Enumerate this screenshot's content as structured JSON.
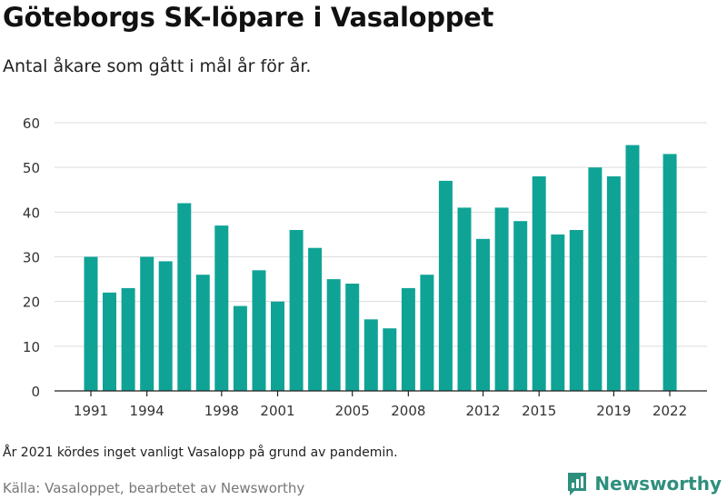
{
  "title": "Göteborgs SK-löpare i Vasaloppet",
  "subtitle": "Antal åkare som gått i mål år för år.",
  "note": "År 2021 kördes inget vanligt Vasalopp på grund av pandemin.",
  "source": "Källa: Vasaloppet, bearbetet av Newsworthy",
  "brand": {
    "name": "Newsworthy",
    "icon": "newsworthy-logo-icon",
    "color": "#2e8f7d"
  },
  "colors": {
    "bar": "#0fa396",
    "grid": "#dddddd",
    "axis": "#222222",
    "tick_text": "#333333"
  },
  "chart_data": {
    "type": "bar",
    "title": "Göteborgs SK-löpare i Vasaloppet",
    "xlabel": "",
    "ylabel": "",
    "ylim": [
      0,
      60
    ],
    "yticks": [
      0,
      10,
      20,
      30,
      40,
      50,
      60
    ],
    "grid": true,
    "categories": [
      1991,
      1992,
      1993,
      1994,
      1995,
      1996,
      1997,
      1998,
      1999,
      2000,
      2001,
      2002,
      2003,
      2004,
      2005,
      2006,
      2007,
      2008,
      2009,
      2010,
      2011,
      2012,
      2013,
      2014,
      2015,
      2016,
      2017,
      2018,
      2019,
      2020,
      2021,
      2022
    ],
    "values": [
      30,
      22,
      23,
      30,
      29,
      42,
      26,
      37,
      19,
      27,
      20,
      36,
      32,
      25,
      24,
      16,
      14,
      23,
      26,
      47,
      41,
      34,
      41,
      38,
      48,
      35,
      36,
      50,
      48,
      55,
      null,
      53
    ],
    "xtick_labels": [
      "1991",
      "1994",
      "1998",
      "2001",
      "2005",
      "2008",
      "2012",
      "2015",
      "2019",
      "2022"
    ]
  }
}
